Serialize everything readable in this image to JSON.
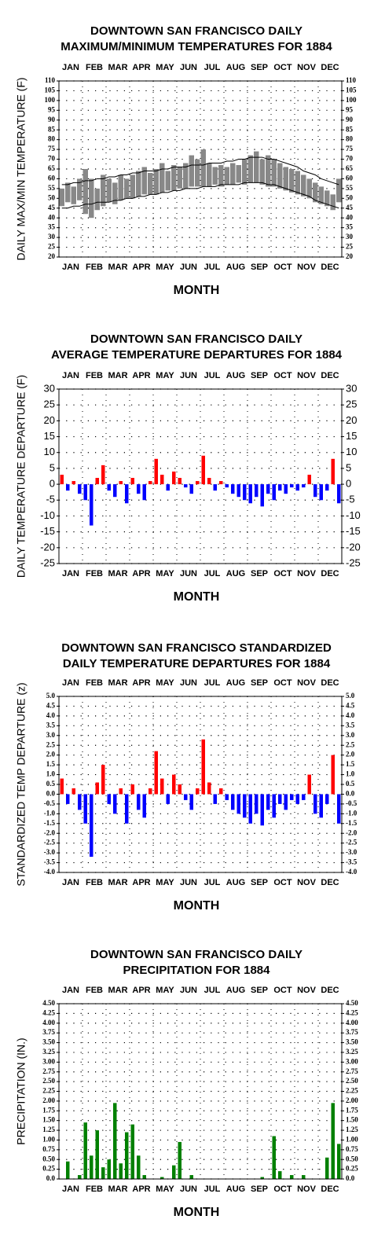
{
  "chart_data": [
    {
      "type": "range",
      "title": [
        "DOWNTOWN SAN FRANCISCO DAILY",
        "MAXIMUM/MINIMUM TEMPERATURES FOR 1884"
      ],
      "y_label": "DAILY MAX/MIN TEMPERATURE (F)",
      "x_label": "MONTH",
      "months": [
        "JAN",
        "FEB",
        "MAR",
        "APR",
        "MAY",
        "JUN",
        "JUL",
        "AUG",
        "SEP",
        "OCT",
        "NOV",
        "DEC"
      ],
      "ylim": [
        20,
        110
      ],
      "yticks": [
        20,
        25,
        30,
        35,
        40,
        45,
        50,
        55,
        60,
        65,
        70,
        75,
        80,
        85,
        90,
        95,
        100,
        105,
        110
      ],
      "range_color": "#888888",
      "normal_color": "#000000",
      "grid": true,
      "max_values": [
        55,
        58,
        56,
        60,
        65,
        60,
        55,
        62,
        60,
        58,
        62,
        60,
        62,
        64,
        66,
        63,
        65,
        68,
        64,
        67,
        66,
        68,
        72,
        70,
        75,
        68,
        66,
        67,
        66,
        68,
        67,
        70,
        72,
        74,
        70,
        72,
        70,
        68,
        66,
        65,
        64,
        62,
        60,
        58,
        56,
        54,
        52,
        60
      ],
      "min_values": [
        46,
        48,
        47,
        49,
        42,
        40,
        44,
        46,
        48,
        47,
        49,
        50,
        50,
        51,
        52,
        52,
        52,
        53,
        54,
        54,
        55,
        55,
        56,
        56,
        56,
        56,
        57,
        56,
        57,
        57,
        58,
        57,
        58,
        58,
        57,
        56,
        56,
        55,
        54,
        53,
        52,
        51,
        50,
        48,
        47,
        46,
        44,
        48
      ],
      "normal_max": [
        57,
        57,
        58,
        58,
        59,
        59,
        60,
        60,
        61,
        61,
        62,
        62,
        63,
        63,
        64,
        64,
        64,
        65,
        65,
        66,
        66,
        66,
        67,
        67,
        67,
        68,
        68,
        68,
        69,
        69,
        70,
        70,
        71,
        71,
        71,
        70,
        70,
        69,
        68,
        67,
        66,
        64,
        63,
        62,
        60,
        59,
        58,
        57
      ],
      "normal_min": [
        45,
        45,
        46,
        46,
        47,
        47,
        48,
        48,
        48,
        49,
        49,
        50,
        50,
        51,
        51,
        52,
        52,
        53,
        53,
        54,
        54,
        55,
        55,
        55,
        56,
        56,
        56,
        57,
        57,
        57,
        57,
        58,
        58,
        58,
        58,
        57,
        57,
        56,
        55,
        54,
        53,
        52,
        51,
        49,
        48,
        47,
        46,
        45
      ]
    },
    {
      "type": "bar",
      "title": [
        "DOWNTOWN SAN FRANCISCO DAILY",
        "AVERAGE TEMPERATURE DEPARTURES FOR 1884"
      ],
      "y_label": "DAILY TEMPERATURE DEPARTURE (F)",
      "x_label": "MONTH",
      "months": [
        "JAN",
        "FEB",
        "MAR",
        "APR",
        "MAY",
        "JUN",
        "JUL",
        "AUG",
        "SEP",
        "OCT",
        "NOV",
        "DEC"
      ],
      "ylim": [
        -25,
        30
      ],
      "yticks": [
        -25,
        -20,
        -15,
        -10,
        -5,
        0,
        5,
        10,
        15,
        20,
        25,
        30
      ],
      "positive_color": "#ff0000",
      "negative_color": "#0000ff",
      "grid": true,
      "values": [
        3,
        -2,
        1,
        -3,
        -5,
        -13,
        2,
        6,
        -2,
        -4,
        1,
        -6,
        2,
        -3,
        -5,
        1,
        8,
        3,
        -2,
        4,
        2,
        -1,
        -3,
        1,
        9,
        2,
        -2,
        1,
        -1,
        -3,
        -4,
        -5,
        -6,
        -4,
        -7,
        -3,
        -5,
        -2,
        -3,
        -1,
        -2,
        -1,
        3,
        -4,
        -5,
        -2,
        8,
        -6
      ]
    },
    {
      "type": "bar",
      "title": [
        "DOWNTOWN SAN FRANCISCO STANDARDIZED",
        "DAILY TEMPERATURE DEPARTURES FOR 1884"
      ],
      "y_label": "STANDARDIZED TEMP DEPARTURE (z)",
      "x_label": "MONTH",
      "months": [
        "JAN",
        "FEB",
        "MAR",
        "APR",
        "MAY",
        "JUN",
        "JUL",
        "AUG",
        "SEP",
        "OCT",
        "NOV",
        "DEC"
      ],
      "ylim": [
        -4,
        5
      ],
      "yticks": [
        {
          "value": -4,
          "label": "-4.0"
        },
        -3.5,
        {
          "value": -3,
          "label": "-3.0"
        },
        -2.5,
        {
          "value": -2,
          "label": "-2.0"
        },
        -1.5,
        {
          "value": -1,
          "label": "-1.0"
        },
        -0.5,
        {
          "value": 0,
          "label": "0.0"
        },
        0.5,
        {
          "value": 1,
          "label": "1.0"
        },
        1.5,
        {
          "value": 2,
          "label": "2.0"
        },
        2.5,
        {
          "value": 3,
          "label": "3.0"
        },
        3.5,
        {
          "value": 4,
          "label": "4.0"
        },
        4.5,
        {
          "value": 5,
          "label": "5.0"
        }
      ],
      "positive_color": "#ff0000",
      "negative_color": "#0000ff",
      "grid": true,
      "values": [
        0.8,
        -0.5,
        0.3,
        -0.8,
        -1.5,
        -3.2,
        0.6,
        1.5,
        -0.5,
        -1.0,
        0.3,
        -1.5,
        0.5,
        -0.8,
        -1.2,
        0.3,
        2.2,
        0.8,
        -0.5,
        1.0,
        0.5,
        -0.3,
        -0.8,
        0.3,
        2.8,
        0.6,
        -0.5,
        0.3,
        -0.3,
        -0.8,
        -1.0,
        -1.2,
        -1.5,
        -1.0,
        -1.6,
        -0.8,
        -1.2,
        -0.5,
        -0.8,
        -0.3,
        -0.5,
        -0.3,
        1.0,
        -1.0,
        -1.2,
        -0.5,
        2.0,
        -1.5
      ]
    },
    {
      "type": "bar",
      "title": [
        "DOWNTOWN SAN FRANCISCO DAILY",
        "PRECIPITATION FOR 1884"
      ],
      "y_label": "PRECIPITATION (IN.)",
      "x_label": "MONTH",
      "months": [
        "JAN",
        "FEB",
        "MAR",
        "APR",
        "MAY",
        "JUN",
        "JUL",
        "AUG",
        "SEP",
        "OCT",
        "NOV",
        "DEC"
      ],
      "ylim": [
        0,
        4.5
      ],
      "yticks": [
        {
          "value": 0,
          "label": "0.0"
        },
        0.25,
        {
          "value": 0.5,
          "label": "0.50"
        },
        0.75,
        {
          "value": 1,
          "label": "1.00"
        },
        1.25,
        {
          "value": 1.5,
          "label": "1.50"
        },
        1.75,
        {
          "value": 2,
          "label": "2.00"
        },
        2.25,
        {
          "value": 2.5,
          "label": "2.50"
        },
        2.75,
        {
          "value": 3,
          "label": "3.00"
        },
        3.25,
        {
          "value": 3.5,
          "label": "3.50"
        },
        3.75,
        {
          "value": 4,
          "label": "4.00"
        },
        4.25,
        {
          "value": 4.5,
          "label": "4.50"
        }
      ],
      "positive_color": "#008000",
      "negative_color": "#008000",
      "grid": true,
      "values": [
        0,
        0.45,
        0,
        0.1,
        1.45,
        0.6,
        1.25,
        0.3,
        0.5,
        1.95,
        0.4,
        1.2,
        1.4,
        0.6,
        0.1,
        0,
        0,
        0.05,
        0,
        0.35,
        0.95,
        0,
        0.1,
        0,
        0,
        0,
        0,
        0,
        0,
        0,
        0,
        0,
        0,
        0,
        0.05,
        0,
        1.1,
        0.2,
        0,
        0.1,
        0,
        0.1,
        0,
        0,
        0,
        0.55,
        1.95,
        0.9
      ]
    }
  ]
}
